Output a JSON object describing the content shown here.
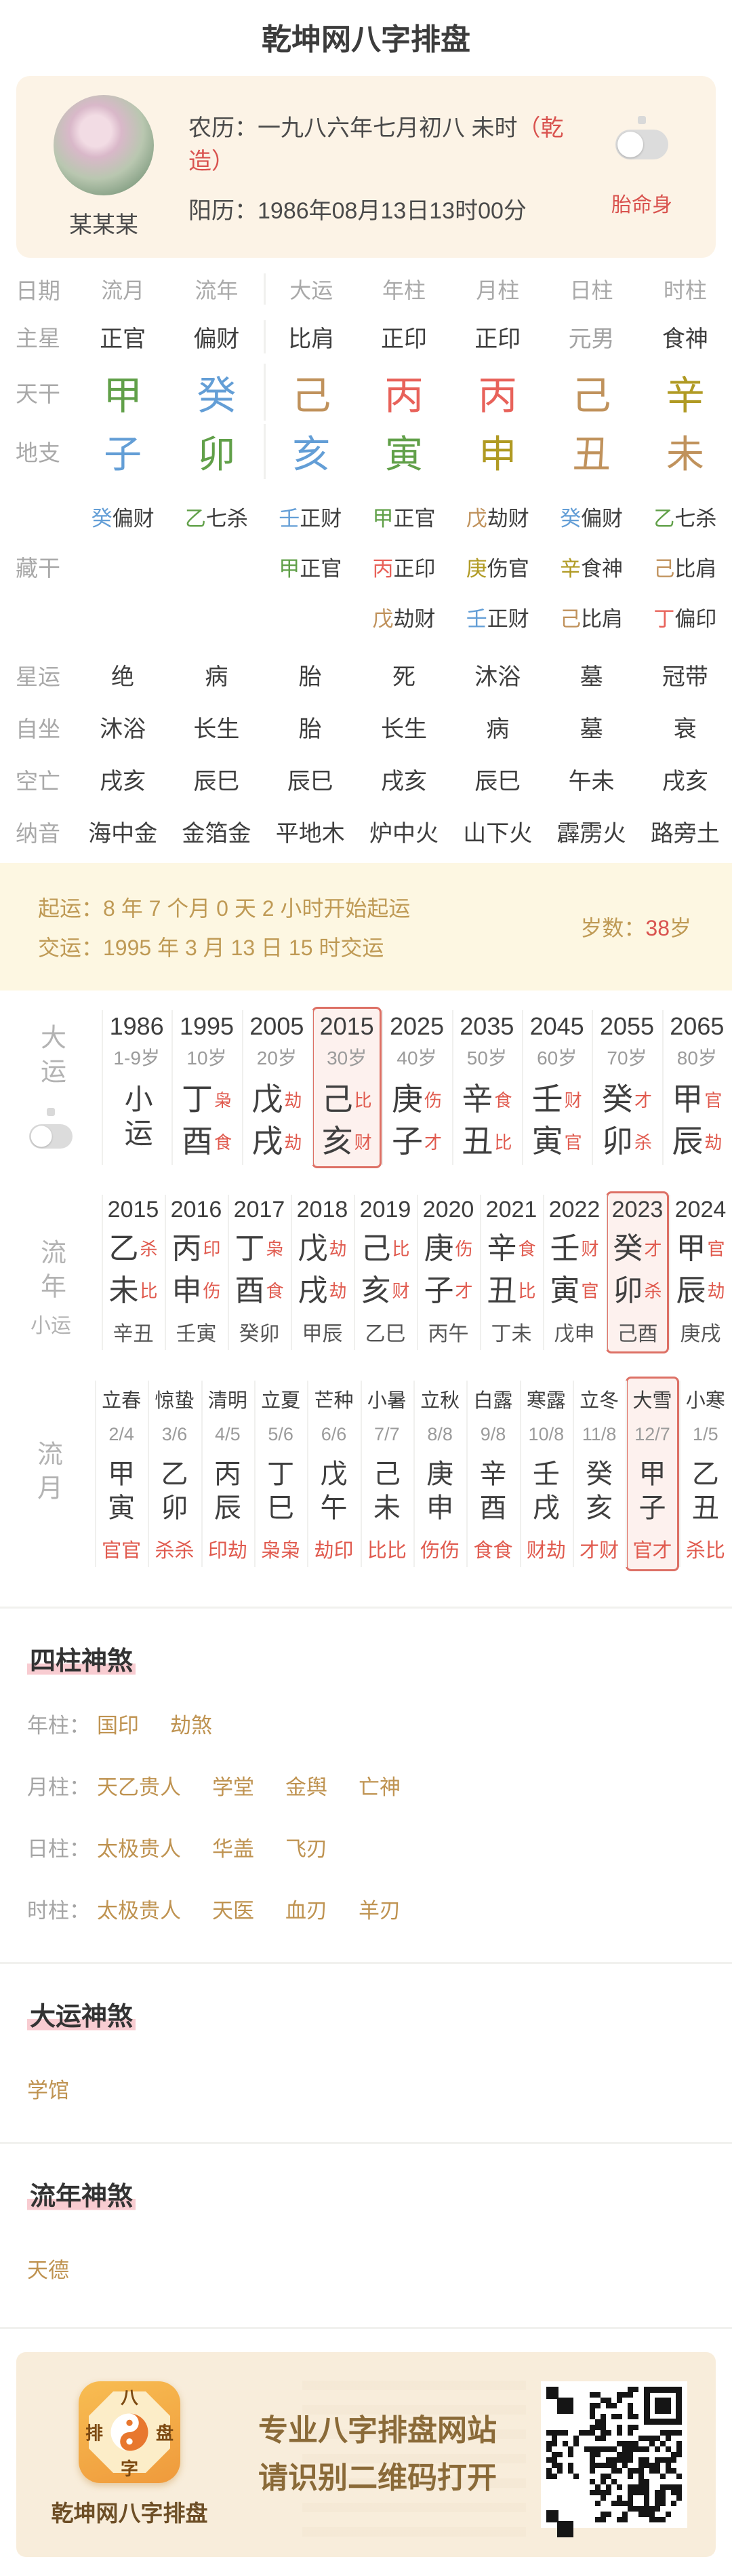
{
  "page": {
    "title": "乾坤网八字排盘"
  },
  "colors": {
    "accent_red": "#d9534f",
    "gold": "#bf9351",
    "wood": "#61a049",
    "fire": "#e8625a",
    "earth": "#c0925c",
    "metal": "#b09a23",
    "water": "#639ed6",
    "highlight_border": "#dd7065",
    "highlight_bg": "#fdf1ee"
  },
  "profile": {
    "name": "某某某",
    "lunar_label": "农历：",
    "lunar_value": "一九八六年七月初八 未时",
    "gender_tag": "（乾造）",
    "solar_label": "阳历：",
    "solar_value": "1986年08月13日13时00分",
    "taimingshen": "胎命身"
  },
  "pillars": {
    "corner": "日期",
    "col_titles": [
      "流月",
      "流年",
      "大运",
      "年柱",
      "月柱",
      "日柱",
      "时柱"
    ],
    "star_label": "主星",
    "stars": [
      {
        "t": "正官",
        "cls": ""
      },
      {
        "t": "偏财",
        "cls": ""
      },
      {
        "t": "比肩",
        "cls": ""
      },
      {
        "t": "正印",
        "cls": ""
      },
      {
        "t": "正印",
        "cls": ""
      },
      {
        "t": "元男",
        "cls": "muted"
      },
      {
        "t": "食神",
        "cls": ""
      }
    ],
    "stem_label": "天干",
    "stems": [
      {
        "c": "甲",
        "el": "el-wood"
      },
      {
        "c": "癸",
        "el": "el-water"
      },
      {
        "c": "己",
        "el": "el-earth"
      },
      {
        "c": "丙",
        "el": "el-fire"
      },
      {
        "c": "丙",
        "el": "el-fire"
      },
      {
        "c": "己",
        "el": "el-earth"
      },
      {
        "c": "辛",
        "el": "el-metal"
      }
    ],
    "branch_label": "地支",
    "branches": [
      {
        "c": "子",
        "el": "el-water"
      },
      {
        "c": "卯",
        "el": "el-wood"
      },
      {
        "c": "亥",
        "el": "el-water"
      },
      {
        "c": "寅",
        "el": "el-wood"
      },
      {
        "c": "申",
        "el": "el-metal"
      },
      {
        "c": "丑",
        "el": "el-earth"
      },
      {
        "c": "未",
        "el": "el-earth"
      }
    ],
    "canggan_label": "藏干",
    "canggan": [
      [
        {
          "c": "癸",
          "el": "el-water",
          "s": "偏财"
        }
      ],
      [
        {
          "c": "乙",
          "el": "el-wood",
          "s": "七杀"
        }
      ],
      [
        {
          "c": "壬",
          "el": "el-water",
          "s": "正财"
        },
        {
          "c": "甲",
          "el": "el-wood",
          "s": "正官"
        }
      ],
      [
        {
          "c": "甲",
          "el": "el-wood",
          "s": "正官"
        },
        {
          "c": "丙",
          "el": "el-fire",
          "s": "正印"
        },
        {
          "c": "戊",
          "el": "el-earth",
          "s": "劫财"
        }
      ],
      [
        {
          "c": "戊",
          "el": "el-earth",
          "s": "劫财"
        },
        {
          "c": "庚",
          "el": "el-metal",
          "s": "伤官"
        },
        {
          "c": "壬",
          "el": "el-water",
          "s": "正财"
        }
      ],
      [
        {
          "c": "癸",
          "el": "el-water",
          "s": "偏财"
        },
        {
          "c": "辛",
          "el": "el-metal",
          "s": "食神"
        },
        {
          "c": "己",
          "el": "el-earth",
          "s": "比肩"
        }
      ],
      [
        {
          "c": "乙",
          "el": "el-wood",
          "s": "七杀"
        },
        {
          "c": "己",
          "el": "el-earth",
          "s": "比肩"
        },
        {
          "c": "丁",
          "el": "el-fire",
          "s": "偏印"
        }
      ]
    ],
    "rows": [
      {
        "label": "星运",
        "vals": [
          "绝",
          "病",
          "胎",
          "死",
          "沐浴",
          "墓",
          "冠带"
        ]
      },
      {
        "label": "自坐",
        "vals": [
          "沐浴",
          "长生",
          "胎",
          "长生",
          "病",
          "墓",
          "衰"
        ]
      },
      {
        "label": "空亡",
        "vals": [
          "戌亥",
          "辰巳",
          "辰巳",
          "戌亥",
          "辰巳",
          "午未",
          "戌亥"
        ]
      },
      {
        "label": "纳音",
        "vals": [
          "海中金",
          "金箔金",
          "平地木",
          "炉中火",
          "山下火",
          "霹雳火",
          "路旁土"
        ]
      }
    ]
  },
  "qiyun": {
    "qiyun_line": "起运：8 年 7 个月 0 天 2 小时开始起运",
    "jiaoyun_line": "交运：1995 年 3 月 13 日 15 时交运",
    "age_label": "岁数：",
    "age_num": "38",
    "age_unit": "岁"
  },
  "dayun": {
    "label": "大运",
    "columns": [
      {
        "year": "1986",
        "age": "1-9岁",
        "special": "小运",
        "cls": ""
      },
      {
        "year": "1995",
        "age": "10岁",
        "g1": "丁",
        "s1": "枭",
        "g2": "酉",
        "s2": "食",
        "cls": ""
      },
      {
        "year": "2005",
        "age": "20岁",
        "g1": "戊",
        "s1": "劫",
        "g2": "戌",
        "s2": "劫",
        "cls": ""
      },
      {
        "year": "2015",
        "age": "30岁",
        "g1": "己",
        "s1": "比",
        "g2": "亥",
        "s2": "财",
        "cls": "hl"
      },
      {
        "year": "2025",
        "age": "40岁",
        "g1": "庚",
        "s1": "伤",
        "g2": "子",
        "s2": "才",
        "cls": ""
      },
      {
        "year": "2035",
        "age": "50岁",
        "g1": "辛",
        "s1": "食",
        "g2": "丑",
        "s2": "比",
        "cls": ""
      },
      {
        "year": "2045",
        "age": "60岁",
        "g1": "壬",
        "s1": "财",
        "g2": "寅",
        "s2": "官",
        "cls": ""
      },
      {
        "year": "2055",
        "age": "70岁",
        "g1": "癸",
        "s1": "才",
        "g2": "卯",
        "s2": "杀",
        "cls": ""
      },
      {
        "year": "2065",
        "age": "80岁",
        "g1": "甲",
        "s1": "官",
        "g2": "辰",
        "s2": "劫",
        "cls": ""
      }
    ]
  },
  "liunian": {
    "label": "流年",
    "xiaoyun_label": "小运",
    "columns": [
      {
        "year": "2015",
        "g1": "乙",
        "s1": "杀",
        "g2": "未",
        "s2": "比",
        "xy": "辛丑",
        "cls": ""
      },
      {
        "year": "2016",
        "g1": "丙",
        "s1": "印",
        "g2": "申",
        "s2": "伤",
        "xy": "壬寅",
        "cls": ""
      },
      {
        "year": "2017",
        "g1": "丁",
        "s1": "枭",
        "g2": "酉",
        "s2": "食",
        "xy": "癸卯",
        "cls": ""
      },
      {
        "year": "2018",
        "g1": "戊",
        "s1": "劫",
        "g2": "戌",
        "s2": "劫",
        "xy": "甲辰",
        "cls": ""
      },
      {
        "year": "2019",
        "g1": "己",
        "s1": "比",
        "g2": "亥",
        "s2": "财",
        "xy": "乙巳",
        "cls": ""
      },
      {
        "year": "2020",
        "g1": "庚",
        "s1": "伤",
        "g2": "子",
        "s2": "才",
        "xy": "丙午",
        "cls": ""
      },
      {
        "year": "2021",
        "g1": "辛",
        "s1": "食",
        "g2": "丑",
        "s2": "比",
        "xy": "丁未",
        "cls": ""
      },
      {
        "year": "2022",
        "g1": "壬",
        "s1": "财",
        "g2": "寅",
        "s2": "官",
        "xy": "戊申",
        "cls": ""
      },
      {
        "year": "2023",
        "g1": "癸",
        "s1": "才",
        "g2": "卯",
        "s2": "杀",
        "xy": "己酉",
        "cls": "hl"
      },
      {
        "year": "2024",
        "g1": "甲",
        "s1": "官",
        "g2": "辰",
        "s2": "劫",
        "xy": "庚戌",
        "cls": ""
      }
    ]
  },
  "liuyue": {
    "label": "流月",
    "columns": [
      {
        "term": "立春",
        "date": "2/4",
        "g1": "甲",
        "g2": "寅",
        "stars": "官官",
        "cls": ""
      },
      {
        "term": "惊蛰",
        "date": "3/6",
        "g1": "乙",
        "g2": "卯",
        "stars": "杀杀",
        "cls": ""
      },
      {
        "term": "清明",
        "date": "4/5",
        "g1": "丙",
        "g2": "辰",
        "stars": "印劫",
        "cls": ""
      },
      {
        "term": "立夏",
        "date": "5/6",
        "g1": "丁",
        "g2": "巳",
        "stars": "枭枭",
        "cls": ""
      },
      {
        "term": "芒种",
        "date": "6/6",
        "g1": "戊",
        "g2": "午",
        "stars": "劫印",
        "cls": ""
      },
      {
        "term": "小暑",
        "date": "7/7",
        "g1": "己",
        "g2": "未",
        "stars": "比比",
        "cls": ""
      },
      {
        "term": "立秋",
        "date": "8/8",
        "g1": "庚",
        "g2": "申",
        "stars": "伤伤",
        "cls": ""
      },
      {
        "term": "白露",
        "date": "9/8",
        "g1": "辛",
        "g2": "酉",
        "stars": "食食",
        "cls": ""
      },
      {
        "term": "寒露",
        "date": "10/8",
        "g1": "壬",
        "g2": "戌",
        "stars": "财劫",
        "cls": ""
      },
      {
        "term": "立冬",
        "date": "11/8",
        "g1": "癸",
        "g2": "亥",
        "stars": "才财",
        "cls": ""
      },
      {
        "term": "大雪",
        "date": "12/7",
        "g1": "甲",
        "g2": "子",
        "stars": "官才",
        "cls": "hl"
      },
      {
        "term": "小寒",
        "date": "1/5",
        "g1": "乙",
        "g2": "丑",
        "stars": "杀比",
        "cls": ""
      }
    ]
  },
  "shensha": {
    "sizhu_title": "四柱神煞",
    "sizhu_rows": [
      {
        "label": "年柱：",
        "items": [
          "国印",
          "劫煞"
        ]
      },
      {
        "label": "月柱：",
        "items": [
          "天乙贵人",
          "学堂",
          "金舆",
          "亡神"
        ]
      },
      {
        "label": "日柱：",
        "items": [
          "太极贵人",
          "华盖",
          "飞刃"
        ]
      },
      {
        "label": "时柱：",
        "items": [
          "太极贵人",
          "天医",
          "血刃",
          "羊刃"
        ]
      }
    ],
    "dayun_title": "大运神煞",
    "dayun_items": [
      "学馆"
    ],
    "liunian_title": "流年神煞",
    "liunian_items": [
      "天德"
    ]
  },
  "footer": {
    "app_name": "乾坤网八字排盘",
    "line1": "专业八字排盘网站",
    "line2": "请识别二维码打开",
    "icon_top": "八",
    "icon_right": "盘",
    "icon_left": "排",
    "icon_bottom": "字"
  }
}
